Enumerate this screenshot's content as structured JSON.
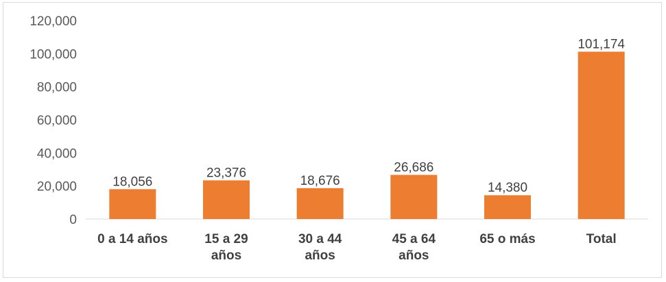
{
  "chart_data": {
    "type": "bar",
    "title": "",
    "xlabel": "",
    "ylabel": "",
    "categories": [
      [
        "0 a 14 años"
      ],
      [
        "15 a 29",
        "años"
      ],
      [
        "30 a 44",
        "años"
      ],
      [
        "45 a 64",
        "años"
      ],
      [
        "65 o más"
      ],
      [
        "Total"
      ]
    ],
    "values": [
      18056,
      23376,
      18676,
      26686,
      14380,
      101174
    ],
    "data_labels": [
      "18,056",
      "23,376",
      "18,676",
      "26,686",
      "14,380",
      "101,174"
    ],
    "ylim": [
      0,
      120000
    ],
    "yticks": [
      0,
      20000,
      40000,
      60000,
      80000,
      100000,
      120000
    ],
    "ytick_labels": [
      "0",
      "20,000",
      "40,000",
      "60,000",
      "80,000",
      "100,000",
      "120,000"
    ],
    "grid": false,
    "legend": "none",
    "bar_color": "#ED7D31"
  }
}
